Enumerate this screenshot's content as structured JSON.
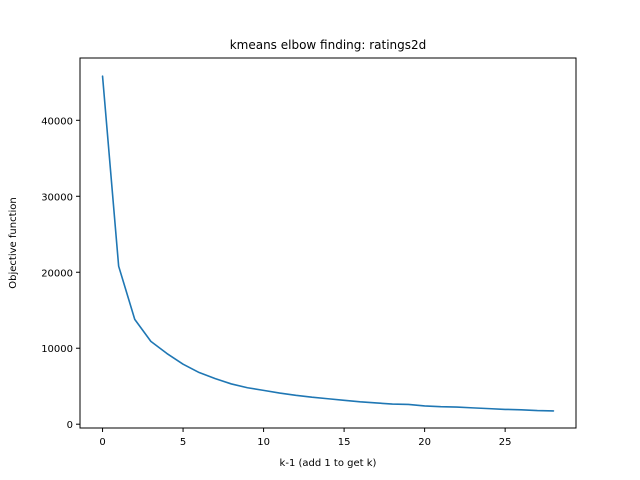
{
  "chart_data": {
    "type": "line",
    "title": "kmeans elbow finding: ratings2d",
    "xlabel": "k-1 (add 1 to get k)",
    "ylabel": "Objective function",
    "xlim": [
      -1.4,
      29.4
    ],
    "ylim": [
      -500,
      48200
    ],
    "xticks": [
      0,
      5,
      10,
      15,
      20,
      25
    ],
    "yticks": [
      0,
      10000,
      20000,
      30000,
      40000
    ],
    "grid": false,
    "series": [
      {
        "color": "#1f77b4",
        "x": [
          0,
          1,
          2,
          3,
          4,
          5,
          6,
          7,
          8,
          9,
          10,
          11,
          12,
          13,
          14,
          15,
          16,
          17,
          18,
          19,
          20,
          21,
          22,
          23,
          24,
          25,
          26,
          27,
          28
        ],
        "values": [
          45800,
          20800,
          13800,
          10900,
          9300,
          7900,
          6800,
          6000,
          5300,
          4800,
          4450,
          4100,
          3800,
          3550,
          3350,
          3150,
          2950,
          2800,
          2650,
          2600,
          2400,
          2300,
          2250,
          2150,
          2050,
          1950,
          1900,
          1800,
          1750
        ]
      }
    ]
  }
}
